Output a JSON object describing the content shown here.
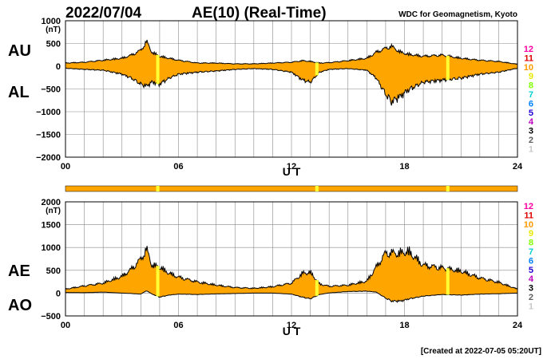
{
  "header": {
    "date": "2022/07/04",
    "title": "AE(10) (Real-Time)",
    "source": "WDC for Geomagnetism, Kyoto"
  },
  "footer": {
    "created": "[Created at 2022-07-05 05:20UT]"
  },
  "station_count": {
    "labels": [
      "12",
      "11",
      "10",
      "9",
      "8",
      "7",
      "6",
      "5",
      "4",
      "3",
      "2",
      "1"
    ],
    "colors": [
      "#ff00a0",
      "#e00000",
      "#ff9900",
      "#e8e800",
      "#80ff00",
      "#00d0d0",
      "#0080ff",
      "#2000d0",
      "#c000c0",
      "#000000",
      "#606060",
      "#c8c8c8"
    ]
  },
  "colors": {
    "fill": "#ffa500",
    "missing_band": "#ffff33",
    "line": "#000000",
    "grid": "#888888"
  },
  "chart_data": [
    {
      "type": "area",
      "panel": "top",
      "series_labels": [
        "AU",
        "AL"
      ],
      "units": "(nT)",
      "xlabel": "U T",
      "x_ticks": [
        "00",
        "06",
        "12",
        "18",
        "24"
      ],
      "xlim": [
        0,
        24
      ],
      "ylim": [
        -2000,
        1000
      ],
      "y_ticks": [
        "1000",
        "500",
        "0",
        "−500",
        "−1000",
        "−1500",
        "−2000"
      ],
      "grid": true,
      "x_hours": [
        0,
        1,
        2,
        3,
        3.5,
        4,
        4.3,
        4.6,
        5,
        5.5,
        6,
        7,
        8,
        9,
        10,
        11,
        12,
        12.6,
        13,
        13.5,
        14,
        15,
        16,
        16.5,
        17,
        17.3,
        17.8,
        18.2,
        19,
        20,
        21,
        22,
        23,
        24
      ],
      "series": [
        {
          "name": "AU",
          "values": [
            80,
            100,
            150,
            200,
            280,
            400,
            620,
            350,
            250,
            200,
            150,
            80,
            80,
            60,
            60,
            80,
            100,
            140,
            120,
            80,
            90,
            140,
            200,
            350,
            450,
            500,
            350,
            300,
            250,
            280,
            200,
            150,
            120,
            50
          ]
        },
        {
          "name": "AL",
          "values": [
            -50,
            -80,
            -100,
            -200,
            -300,
            -450,
            -500,
            -400,
            -450,
            -300,
            -200,
            -150,
            -120,
            -80,
            -60,
            -80,
            -150,
            -350,
            -400,
            -150,
            -80,
            -60,
            -100,
            -300,
            -700,
            -900,
            -750,
            -600,
            -400,
            -350,
            -300,
            -200,
            -150,
            -50
          ]
        }
      ],
      "missing_data_hours": [
        4.9,
        13.35,
        20.3
      ]
    },
    {
      "type": "area",
      "panel": "bottom",
      "series_labels": [
        "AE",
        "AO"
      ],
      "units": "(nT)",
      "xlabel": "U T",
      "x_ticks": [
        "00",
        "06",
        "12",
        "18",
        "24"
      ],
      "xlim": [
        0,
        24
      ],
      "ylim": [
        -500,
        2000
      ],
      "y_ticks": [
        "2000",
        "1500",
        "1000",
        "500",
        "0",
        "−500"
      ],
      "grid": true,
      "x_hours": [
        0,
        1,
        2,
        3,
        3.5,
        4,
        4.3,
        4.6,
        5,
        5.5,
        6,
        7,
        8,
        9,
        10,
        11,
        12,
        12.6,
        13,
        13.5,
        14,
        15,
        16,
        16.5,
        17,
        17.3,
        17.8,
        18.2,
        19,
        20,
        21,
        22,
        23,
        24
      ],
      "series": [
        {
          "name": "AE",
          "values": [
            100,
            180,
            250,
            420,
            600,
            850,
            1100,
            700,
            650,
            500,
            400,
            280,
            200,
            140,
            120,
            160,
            250,
            500,
            520,
            230,
            170,
            200,
            300,
            650,
            1000,
            1000,
            1000,
            1050,
            700,
            630,
            550,
            380,
            270,
            100
          ]
        },
        {
          "name": "AO",
          "values": [
            15,
            10,
            25,
            0,
            -10,
            -25,
            60,
            -25,
            -100,
            -50,
            -25,
            -35,
            -20,
            -10,
            0,
            0,
            -25,
            -105,
            -140,
            -35,
            5,
            40,
            50,
            25,
            -125,
            -200,
            -200,
            -150,
            -75,
            -35,
            -50,
            -25,
            -15,
            0
          ]
        }
      ],
      "missing_data_hours": [
        4.9,
        13.35,
        20.3
      ]
    }
  ]
}
